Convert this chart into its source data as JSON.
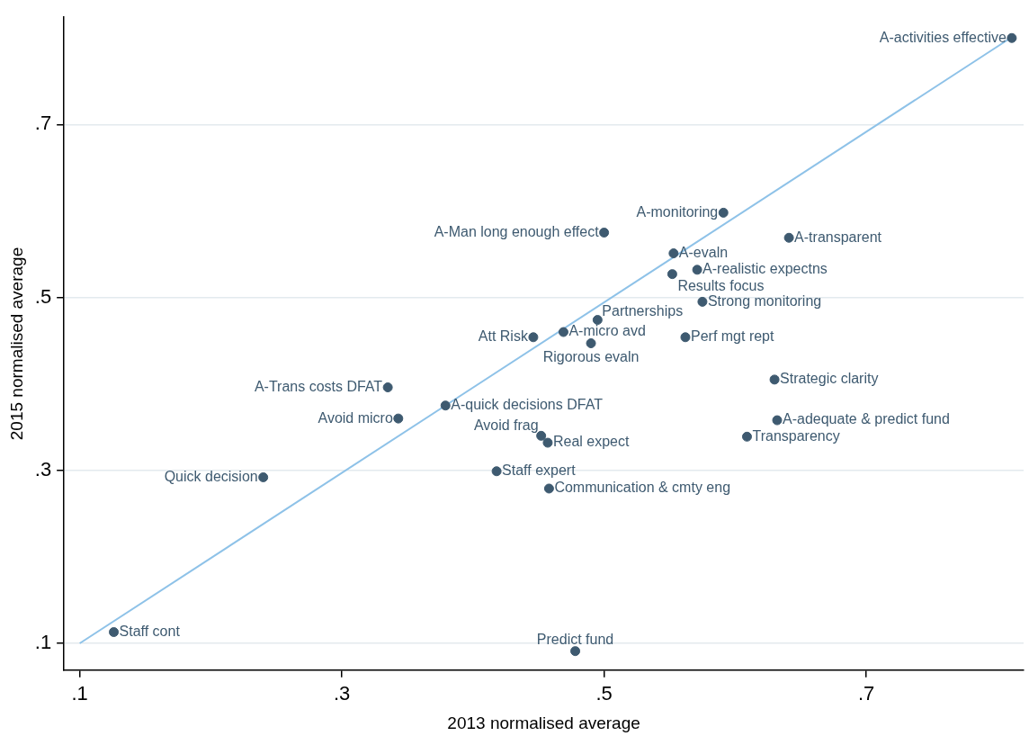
{
  "chart_data": {
    "type": "scatter",
    "xlabel": "2013 normalised average",
    "ylabel": "2015 normalised average",
    "xlim": [
      0.088,
      0.82
    ],
    "ylim": [
      0.069,
      0.824
    ],
    "xticks": [
      {
        "value": 0.1,
        "label": ".1"
      },
      {
        "value": 0.3,
        "label": ".3"
      },
      {
        "value": 0.5,
        "label": ".5"
      },
      {
        "value": 0.7,
        "label": ".7"
      }
    ],
    "yticks": [
      {
        "value": 0.1,
        "label": ".1"
      },
      {
        "value": 0.3,
        "label": ".3"
      },
      {
        "value": 0.5,
        "label": ".5"
      },
      {
        "value": 0.7,
        "label": ".7"
      }
    ],
    "grid": "y",
    "marker": "circle",
    "series": [
      {
        "color": "#3e5a70",
        "x": [
          0.811,
          0.591,
          0.5,
          0.641,
          0.553,
          0.571,
          0.552,
          0.575,
          0.495,
          0.469,
          0.446,
          0.562,
          0.49,
          0.63,
          0.335,
          0.379,
          0.343,
          0.632,
          0.452,
          0.609,
          0.457,
          0.24,
          0.418,
          0.458,
          0.126,
          0.478
        ],
        "values": [
          0.8,
          0.598,
          0.575,
          0.569,
          0.551,
          0.532,
          0.527,
          0.495,
          0.474,
          0.46,
          0.454,
          0.454,
          0.447,
          0.405,
          0.396,
          0.375,
          0.36,
          0.358,
          0.34,
          0.339,
          0.332,
          0.292,
          0.299,
          0.279,
          0.113,
          0.091
        ]
      },
      {
        "type": "line",
        "marker": "none",
        "color": "#8ec2e8",
        "x": [
          0.1,
          0.81
        ],
        "values": [
          0.1,
          0.8
        ]
      }
    ],
    "annotations": [
      {
        "text": "A-activities effective",
        "x": 0.811,
        "y": 0.8
      },
      {
        "text": "A-monitoring",
        "x": 0.591,
        "y": 0.598
      },
      {
        "text": "A-Man long enough effect",
        "x": 0.5,
        "y": 0.575
      },
      {
        "text": "A-transparent",
        "x": 0.641,
        "y": 0.569
      },
      {
        "text": "A-evaln",
        "x": 0.553,
        "y": 0.551
      },
      {
        "text": "A-realistic expectns",
        "x": 0.571,
        "y": 0.532
      },
      {
        "text": "Results focus",
        "x": 0.552,
        "y": 0.527
      },
      {
        "text": "Strong monitoring",
        "x": 0.575,
        "y": 0.495
      },
      {
        "text": "Partnerships",
        "x": 0.495,
        "y": 0.474
      },
      {
        "text": "A-micro avd",
        "x": 0.469,
        "y": 0.46
      },
      {
        "text": "Att Risk",
        "x": 0.446,
        "y": 0.454
      },
      {
        "text": "Perf mgt rept",
        "x": 0.562,
        "y": 0.454
      },
      {
        "text": "Rigorous evaln",
        "x": 0.49,
        "y": 0.447
      },
      {
        "text": "Strategic clarity",
        "x": 0.63,
        "y": 0.405
      },
      {
        "text": "A-Trans costs DFAT",
        "x": 0.335,
        "y": 0.396
      },
      {
        "text": "A-quick decisions DFAT",
        "x": 0.379,
        "y": 0.375
      },
      {
        "text": "Avoid micro",
        "x": 0.343,
        "y": 0.36
      },
      {
        "text": "A-adequate & predict fund",
        "x": 0.632,
        "y": 0.358
      },
      {
        "text": "Avoid frag",
        "x": 0.452,
        "y": 0.34
      },
      {
        "text": "Transparency",
        "x": 0.609,
        "y": 0.339
      },
      {
        "text": "Real expect",
        "x": 0.457,
        "y": 0.332
      },
      {
        "text": "Quick decision",
        "x": 0.24,
        "y": 0.292
      },
      {
        "text": "Staff expert",
        "x": 0.418,
        "y": 0.299
      },
      {
        "text": "Communication & cmty eng",
        "x": 0.458,
        "y": 0.279
      },
      {
        "text": "Staff cont",
        "x": 0.126,
        "y": 0.113
      },
      {
        "text": "Predict fund",
        "x": 0.478,
        "y": 0.091
      }
    ]
  }
}
